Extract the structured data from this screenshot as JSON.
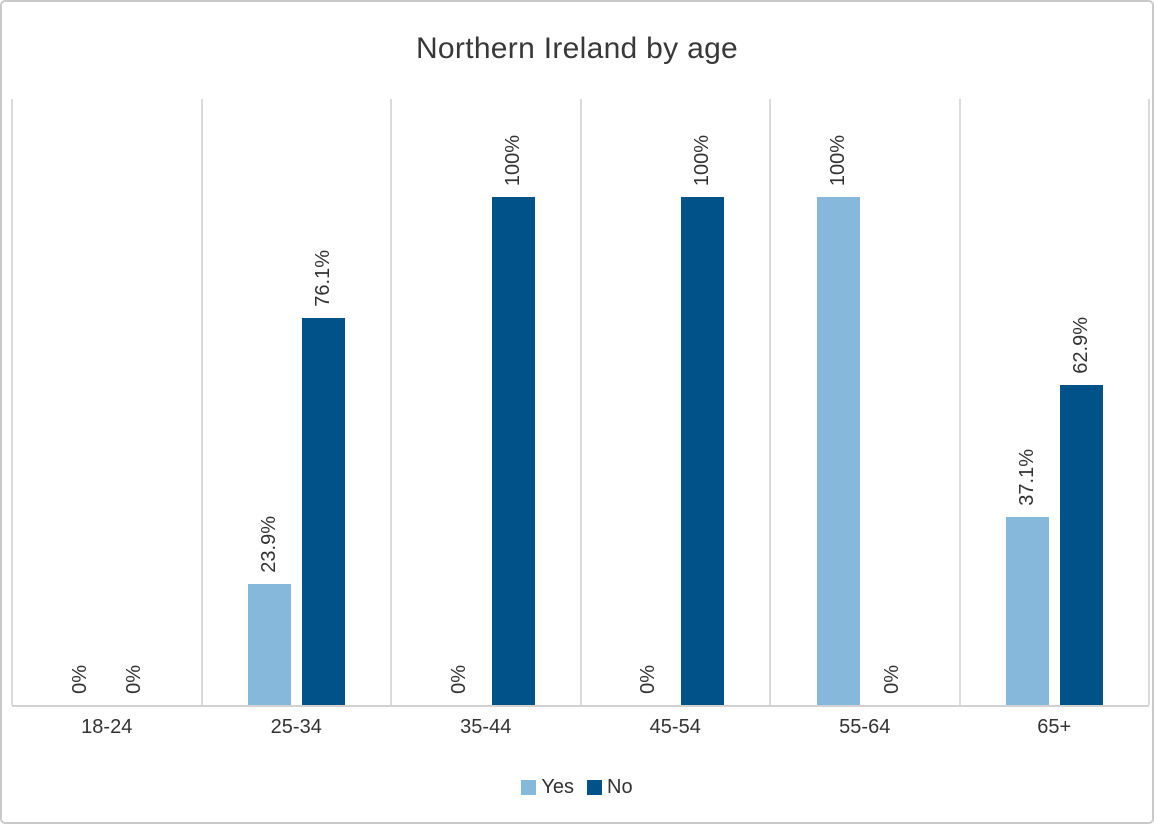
{
  "chart_data": {
    "type": "bar",
    "title": "Northern Ireland by age",
    "categories": [
      "18-24",
      "25-34",
      "35-44",
      "45-54",
      "55-64",
      "65+"
    ],
    "series": [
      {
        "name": "Yes",
        "color": "#85B8DA",
        "values": [
          0,
          23.9,
          0,
          0,
          100,
          37.1
        ],
        "labels": [
          "0%",
          "23.9%",
          "0%",
          "0%",
          "100%",
          "37.1%"
        ]
      },
      {
        "name": "No",
        "color": "#02528A",
        "values": [
          0,
          76.1,
          100,
          100,
          0,
          62.9
        ],
        "labels": [
          "0%",
          "76.1%",
          "100%",
          "100%",
          "0%",
          "62.9%"
        ]
      }
    ],
    "xlabel": "",
    "ylabel": "",
    "ylim": [
      0,
      120
    ],
    "value_axis_visible": false,
    "grid": "vertical-category-separators-only",
    "data_label_rotation": 90,
    "legend_position": "bottom"
  },
  "colors": {
    "yes_series": "#85B8DA",
    "no_series": "#02528A",
    "gridline": "#dadada",
    "axis_line": "#d2d2d2",
    "text": "#333333",
    "border": "#c9c9c9"
  }
}
